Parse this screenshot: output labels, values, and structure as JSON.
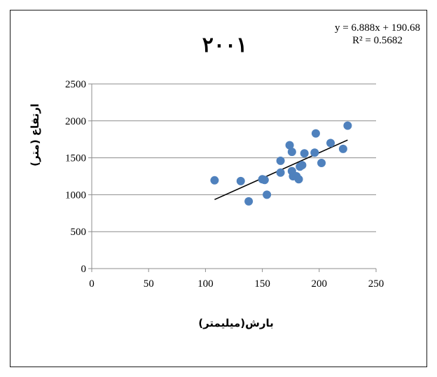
{
  "chart_data": {
    "type": "scatter",
    "title": "۲۰۰۱",
    "xlabel": "بارش(میلیمتر)",
    "ylabel": "ارتفاع (متر)",
    "xlim": [
      0,
      250
    ],
    "ylim": [
      0,
      2500
    ],
    "x_ticks": [
      "0",
      "50",
      "100",
      "150",
      "200",
      "250"
    ],
    "y_ticks": [
      "0",
      "500",
      "1000",
      "1500",
      "2000",
      "2500"
    ],
    "grid": "horizontal",
    "legend": "none",
    "point_color": "#4f81bd",
    "trendline": {
      "type": "linear",
      "equation": "y = 6.888x + 190.68",
      "r_squared": "R² = 0.5682",
      "slope": 6.888,
      "intercept": 190.68,
      "x_range": [
        108,
        225
      ]
    },
    "series": [
      {
        "points": [
          [
            108,
            1195
          ],
          [
            131,
            1185
          ],
          [
            138,
            910
          ],
          [
            150,
            1210
          ],
          [
            152,
            1200
          ],
          [
            154,
            1000
          ],
          [
            166,
            1460
          ],
          [
            166,
            1300
          ],
          [
            174,
            1670
          ],
          [
            176,
            1580
          ],
          [
            176,
            1320
          ],
          [
            177,
            1250
          ],
          [
            180,
            1250
          ],
          [
            182,
            1210
          ],
          [
            183,
            1380
          ],
          [
            185,
            1400
          ],
          [
            187,
            1560
          ],
          [
            196,
            1570
          ],
          [
            197,
            1830
          ],
          [
            202,
            1430
          ],
          [
            210,
            1700
          ],
          [
            221,
            1620
          ],
          [
            225,
            1935
          ]
        ]
      }
    ]
  }
}
